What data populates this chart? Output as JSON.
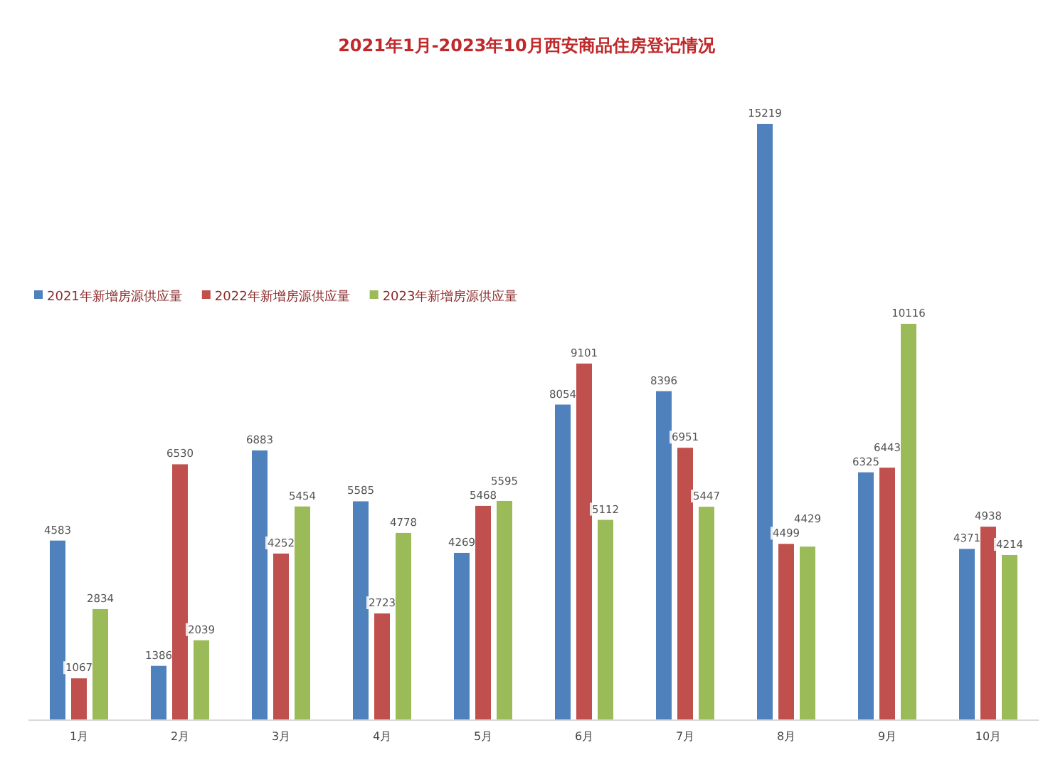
{
  "chart_data": {
    "type": "bar",
    "title": "2021年1月-2023年10月西安商品住房登记情况",
    "categories": [
      "1月",
      "2月",
      "3月",
      "4月",
      "5月",
      "6月",
      "7月",
      "8月",
      "9月",
      "10月"
    ],
    "series": [
      {
        "name": "2021年新增房源供应量",
        "color": "#4f81bd",
        "values": [
          4583,
          1386,
          6883,
          5585,
          4269,
          8054,
          8396,
          15219,
          6325,
          4371
        ]
      },
      {
        "name": "2022年新增房源供应量",
        "color": "#c0504d",
        "values": [
          1067,
          6530,
          4252,
          2723,
          5468,
          9101,
          6951,
          4499,
          6443,
          4938
        ]
      },
      {
        "name": "2023年新增房源供应量",
        "color": "#9bbb59",
        "values": [
          2834,
          2039,
          5454,
          4778,
          5595,
          5112,
          5447,
          4429,
          10116,
          4214
        ]
      }
    ],
    "data_labels": true,
    "legend": "top left",
    "grid": false
  }
}
